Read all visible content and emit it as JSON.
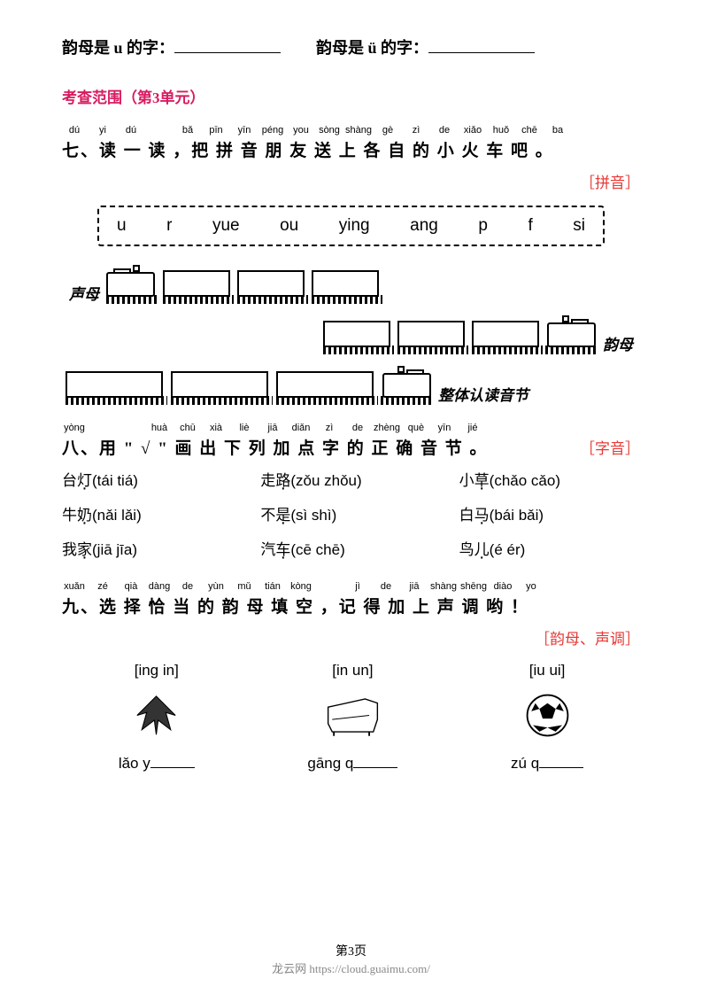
{
  "fill_blanks": {
    "item1": "韵母是 u 的字：",
    "item2": "韵母是 ü 的字："
  },
  "scope": "考查范围（第3单元）",
  "q7": {
    "pinyin": [
      "dú",
      "yi",
      "dú",
      "",
      "bǎ",
      "pīn",
      "yīn",
      "péng",
      "you",
      "sòng",
      "shàng",
      "gè",
      "zì",
      "de",
      "xiǎo",
      "huǒ",
      "chē",
      "ba"
    ],
    "hanzi": "七、读 一 读 ，把 拼 音 朋 友 送  上  各 自 的 小 火 车 吧 。",
    "tag": "［拼音］",
    "syllables": [
      "u",
      "r",
      "yue",
      "ou",
      "ying",
      "ang",
      "p",
      "f",
      "si"
    ],
    "labels": {
      "shengmu": "声母",
      "yunmu": "韵母",
      "zhengti": "整体认读音节"
    }
  },
  "q8": {
    "pinyin": [
      "yòng",
      "",
      "",
      "huà",
      "chū",
      "xià",
      "liè",
      "jiā",
      "diǎn",
      "zì",
      "de",
      "zhèng",
      "què",
      "yīn",
      "jié"
    ],
    "hanzi": "八、用 \" √ \" 画 出 下 列 加 点 字 的 正 确 音 节 。",
    "tag": "［字音］",
    "items": [
      {
        "word": "台灯",
        "opts": "(tái  tiá)"
      },
      {
        "word": "走路",
        "opts": "(zǒu  zhǒu)"
      },
      {
        "word": "小草",
        "opts": "(chǎo  cǎo)"
      },
      {
        "word": "牛奶",
        "opts": "(nǎi  lǎi)"
      },
      {
        "word": "不是",
        "opts": "(sì  shì)"
      },
      {
        "word": "白马",
        "opts": "(bái  bǎi)"
      },
      {
        "word": "我家",
        "opts": "(jiā  jīa)"
      },
      {
        "word": "汽车",
        "opts": "(cē  chē)"
      },
      {
        "word": "鸟儿",
        "opts": "(é  ér)"
      }
    ]
  },
  "q9": {
    "pinyin": [
      "xuǎn",
      "zé",
      "qià",
      "dàng",
      "de",
      "yùn",
      "mǔ",
      "tián",
      "kòng",
      "",
      "jì",
      "de",
      "jiā",
      "shàng",
      "shēng",
      "diào",
      "yo"
    ],
    "hanzi": "九、选 择 恰 当 的 韵 母 填 空 ，记 得 加 上  声  调 哟 ！",
    "tag": "［韵母、声调］",
    "items": [
      {
        "bracket": "[ing  in]",
        "fill": "lǎo y"
      },
      {
        "bracket": "[in  un]",
        "fill": "gāng q"
      },
      {
        "bracket": "[iu  ui]",
        "fill": "zú q"
      }
    ]
  },
  "footer": {
    "page": "第3页",
    "site_name": "龙云网",
    "url": "https://cloud.guaimu.com/"
  },
  "colors": {
    "pink": "#d81b60",
    "red": "#e53935",
    "gray": "#888888"
  }
}
